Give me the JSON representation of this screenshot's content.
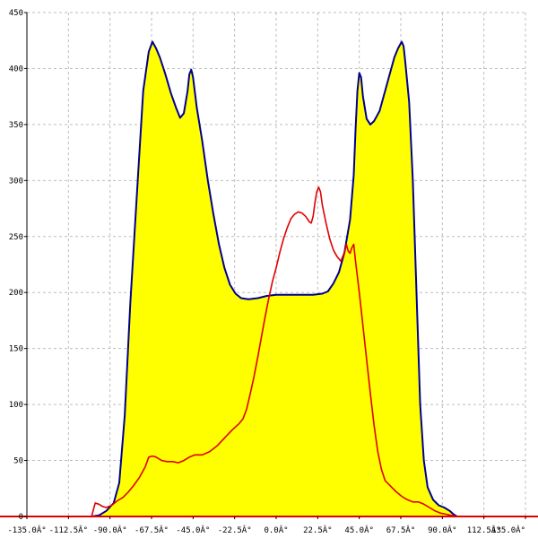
{
  "chart_data": {
    "type": "area",
    "xlim": [
      -135,
      135
    ],
    "ylim": [
      0,
      450
    ],
    "grid": true,
    "x_ticks": [
      -135,
      -112.5,
      -90,
      -67.5,
      -45,
      -22.5,
      0,
      22.5,
      45,
      67.5,
      90,
      112.5,
      135
    ],
    "x_tick_labels": [
      "-135.0Â°",
      "-112.5Â°",
      "-90.0Â°",
      "-67.5Â°",
      "-45.0Â°",
      "-22.5Â°",
      "0.0Â°",
      "22.5Â°",
      "45.0Â°",
      "67.5Â°",
      "90.0Â°",
      "112.5Â°",
      "135.0Â°"
    ],
    "y_ticks": [
      0,
      50,
      100,
      150,
      200,
      250,
      300,
      350,
      400,
      450
    ],
    "y_tick_labels": [
      "0",
      "50",
      "100",
      "150",
      "200",
      "250",
      "300",
      "350",
      "400",
      "450"
    ],
    "series": [
      {
        "style": "filled area",
        "fill_color": "#ffff00",
        "line_color": "#00008b",
        "points": [
          [
            -100,
            0
          ],
          [
            -96,
            1
          ],
          [
            -92,
            5
          ],
          [
            -88,
            12
          ],
          [
            -85,
            30
          ],
          [
            -82,
            90
          ],
          [
            -79,
            190
          ],
          [
            -75,
            300
          ],
          [
            -72,
            380
          ],
          [
            -69,
            415
          ],
          [
            -67,
            424
          ],
          [
            -65,
            418
          ],
          [
            -63,
            410
          ],
          [
            -60,
            395
          ],
          [
            -57,
            378
          ],
          [
            -54,
            364
          ],
          [
            -52,
            356
          ],
          [
            -50,
            360
          ],
          [
            -48,
            380
          ],
          [
            -47,
            395
          ],
          [
            -46,
            399
          ],
          [
            -45,
            392
          ],
          [
            -43,
            365
          ],
          [
            -40,
            335
          ],
          [
            -37,
            300
          ],
          [
            -34,
            270
          ],
          [
            -31,
            243
          ],
          [
            -28,
            222
          ],
          [
            -25,
            207
          ],
          [
            -22,
            199
          ],
          [
            -19,
            195
          ],
          [
            -15,
            194
          ],
          [
            -10,
            195
          ],
          [
            -5,
            197
          ],
          [
            0,
            198
          ],
          [
            5,
            198
          ],
          [
            10,
            198
          ],
          [
            15,
            198
          ],
          [
            20,
            198
          ],
          [
            25,
            199
          ],
          [
            28,
            201
          ],
          [
            31,
            208
          ],
          [
            34,
            218
          ],
          [
            37,
            236
          ],
          [
            40,
            265
          ],
          [
            42,
            305
          ],
          [
            43,
            345
          ],
          [
            44,
            380
          ],
          [
            45,
            396
          ],
          [
            46,
            392
          ],
          [
            47,
            375
          ],
          [
            49,
            355
          ],
          [
            51,
            350
          ],
          [
            53,
            353
          ],
          [
            56,
            362
          ],
          [
            59,
            380
          ],
          [
            62,
            398
          ],
          [
            64,
            410
          ],
          [
            66,
            418
          ],
          [
            68,
            424
          ],
          [
            69,
            420
          ],
          [
            70,
            405
          ],
          [
            72,
            370
          ],
          [
            74,
            300
          ],
          [
            76,
            200
          ],
          [
            78,
            100
          ],
          [
            80,
            50
          ],
          [
            82,
            26
          ],
          [
            85,
            15
          ],
          [
            88,
            10
          ],
          [
            91,
            8
          ],
          [
            94,
            5
          ],
          [
            96,
            2
          ],
          [
            98,
            0
          ]
        ]
      },
      {
        "style": "line",
        "line_color": "#e00000",
        "points": [
          [
            -100,
            0
          ],
          [
            -98,
            12
          ],
          [
            -96,
            11
          ],
          [
            -94,
            9
          ],
          [
            -92,
            8
          ],
          [
            -89,
            10
          ],
          [
            -86,
            14
          ],
          [
            -83,
            17
          ],
          [
            -80,
            22
          ],
          [
            -77,
            28
          ],
          [
            -74,
            35
          ],
          [
            -71,
            44
          ],
          [
            -69,
            53
          ],
          [
            -67,
            54
          ],
          [
            -65,
            53
          ],
          [
            -62,
            50
          ],
          [
            -59,
            49
          ],
          [
            -56,
            49
          ],
          [
            -53,
            48
          ],
          [
            -50,
            50
          ],
          [
            -47,
            53
          ],
          [
            -44,
            55
          ],
          [
            -40,
            55
          ],
          [
            -36,
            58
          ],
          [
            -32,
            63
          ],
          [
            -28,
            70
          ],
          [
            -24,
            77
          ],
          [
            -20,
            83
          ],
          [
            -18,
            87
          ],
          [
            -16,
            96
          ],
          [
            -14,
            110
          ],
          [
            -12,
            125
          ],
          [
            -10,
            142
          ],
          [
            -8,
            160
          ],
          [
            -6,
            178
          ],
          [
            -4,
            195
          ],
          [
            -2,
            210
          ],
          [
            0,
            222
          ],
          [
            2,
            236
          ],
          [
            4,
            248
          ],
          [
            6,
            258
          ],
          [
            8,
            266
          ],
          [
            10,
            270
          ],
          [
            12,
            272
          ],
          [
            14,
            271
          ],
          [
            16,
            268
          ],
          [
            18,
            263
          ],
          [
            19,
            262
          ],
          [
            20,
            268
          ],
          [
            21,
            280
          ],
          [
            22,
            290
          ],
          [
            23,
            294
          ],
          [
            24,
            290
          ],
          [
            25,
            278
          ],
          [
            27,
            262
          ],
          [
            29,
            248
          ],
          [
            31,
            238
          ],
          [
            33,
            232
          ],
          [
            35,
            228
          ],
          [
            37,
            236
          ],
          [
            38,
            243
          ],
          [
            39,
            237
          ],
          [
            40,
            235
          ],
          [
            41,
            240
          ],
          [
            42,
            243
          ],
          [
            43,
            228
          ],
          [
            45,
            200
          ],
          [
            47,
            170
          ],
          [
            49,
            140
          ],
          [
            51,
            110
          ],
          [
            53,
            82
          ],
          [
            55,
            58
          ],
          [
            57,
            42
          ],
          [
            59,
            32
          ],
          [
            62,
            27
          ],
          [
            65,
            22
          ],
          [
            68,
            18
          ],
          [
            71,
            15
          ],
          [
            74,
            13
          ],
          [
            77,
            13
          ],
          [
            80,
            11
          ],
          [
            83,
            8
          ],
          [
            86,
            5
          ],
          [
            89,
            3
          ],
          [
            92,
            2
          ],
          [
            95,
            1
          ],
          [
            98,
            0
          ]
        ]
      }
    ]
  }
}
